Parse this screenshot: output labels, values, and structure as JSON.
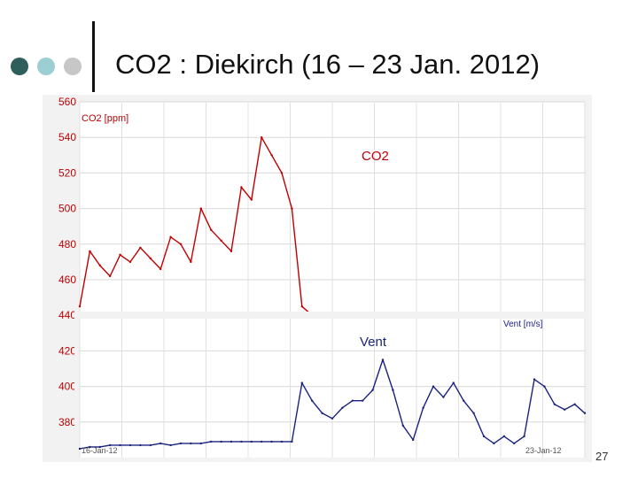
{
  "slide": {
    "title": "CO2 : Diekirch (16 – 23 Jan. 2012)",
    "page_number": "27",
    "bullet_colors": [
      "#2e5f5a",
      "#9ccfd3",
      "#c7c7c7"
    ]
  },
  "chart_data": {
    "type": "line",
    "y_ticks": [
      "560",
      "540",
      "520",
      "500",
      "480",
      "460",
      "440",
      "420",
      "400",
      "380"
    ],
    "ylim": [
      360,
      560
    ],
    "x": [
      0,
      2,
      4,
      6,
      8,
      10,
      12,
      14,
      16,
      18,
      20,
      22,
      24,
      26,
      28,
      30,
      32,
      34,
      36,
      38,
      40,
      42,
      44,
      46,
      48,
      50,
      52,
      54,
      56,
      58,
      60,
      62,
      64,
      66,
      68,
      70,
      72,
      74,
      76,
      78,
      80,
      82,
      84,
      86,
      88,
      90,
      92,
      94,
      96,
      98,
      100
    ],
    "series": [
      {
        "name": "CO2",
        "unit_label": "CO2 [ppm]",
        "label": "CO2",
        "color": "#c00000",
        "values": [
          445,
          476,
          468,
          462,
          474,
          470,
          478,
          472,
          466,
          484,
          480,
          470,
          500,
          488,
          482,
          476,
          512,
          505,
          540,
          530,
          520,
          500,
          445,
          440,
          null,
          null,
          null,
          null,
          null,
          null,
          null,
          null,
          null,
          null,
          null,
          null,
          null,
          null,
          null,
          null,
          null,
          null,
          null,
          null,
          null,
          null,
          null,
          null,
          null,
          null,
          null
        ]
      },
      {
        "name": "Vent",
        "unit_label": "Vent [m/s]",
        "label": "Vent",
        "color": "#1a237e",
        "values": [
          365,
          366,
          366,
          367,
          367,
          367,
          367,
          367,
          368,
          367,
          368,
          368,
          368,
          369,
          369,
          369,
          369,
          369,
          369,
          369,
          369,
          369,
          402,
          392,
          385,
          382,
          388,
          392,
          392,
          398,
          415,
          398,
          378,
          370,
          388,
          400,
          394,
          402,
          392,
          385,
          372,
          368,
          372,
          368,
          372,
          404,
          400,
          390,
          387,
          390,
          385
        ]
      }
    ],
    "date_labels": [
      "16-Jan-12",
      "23-Jan-12"
    ]
  }
}
